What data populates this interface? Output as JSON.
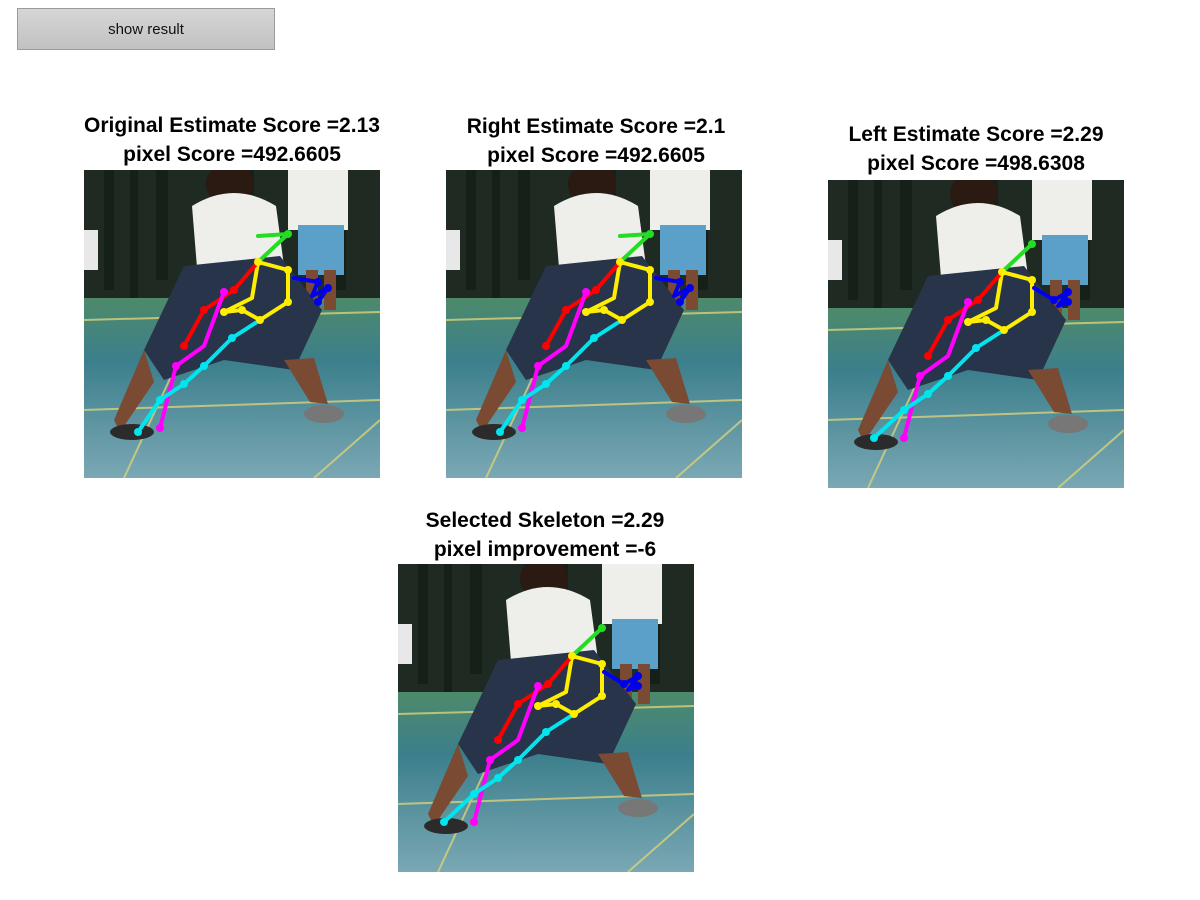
{
  "toolbar": {
    "show_result_label": "show result"
  },
  "panels": [
    {
      "id": "original",
      "title_line1": "Original Estimate Score =2.13",
      "title_line2": "pixel Score =492.6605"
    },
    {
      "id": "right",
      "title_line1": "Right Estimate Score =2.1",
      "title_line2": "pixel Score =492.6605"
    },
    {
      "id": "left",
      "title_line1": "Left Estimate Score =2.29",
      "title_line2": "pixel Score =498.6308"
    },
    {
      "id": "selected",
      "title_line1": "Selected Skeleton =2.29",
      "title_line2": "pixel improvement =-6"
    }
  ],
  "skeleton_colors": {
    "head": "#22dd22",
    "torso": "#ffee00",
    "right_arm": "#ff0000",
    "left_arm": "#ff00ff",
    "right_leg": "#00e5ee",
    "left_leg": "#0000ee"
  },
  "scene_colors": {
    "wall": "#1e2a22",
    "floor": "#3e7a86",
    "shirt": "#eeeeea",
    "shorts": "#28344a",
    "skin": "#7a4a32"
  }
}
